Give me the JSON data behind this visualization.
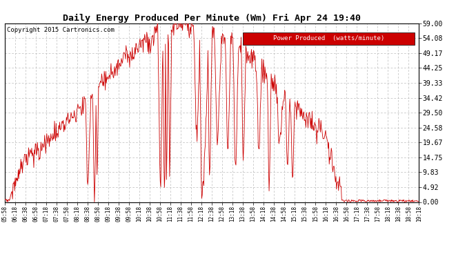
{
  "title": "Daily Energy Produced Per Minute (Wm) Fri Apr 24 19:40",
  "copyright": "Copyright 2015 Cartronics.com",
  "legend_label": "Power Produced  (watts/minute)",
  "legend_bg": "#cc0000",
  "legend_fg": "#ffffff",
  "line_color": "#cc0000",
  "bg_color": "#ffffff",
  "grid_color": "#bbbbbb",
  "ylim": [
    0,
    59.0
  ],
  "yticks": [
    0.0,
    4.92,
    9.83,
    14.75,
    19.67,
    24.58,
    29.5,
    34.42,
    39.33,
    44.25,
    49.17,
    54.08,
    59.0
  ],
  "ytick_labels": [
    "0.00",
    "4.92",
    "9.83",
    "14.75",
    "19.67",
    "24.58",
    "29.50",
    "34.42",
    "39.33",
    "44.25",
    "49.17",
    "54.08",
    "59.00"
  ],
  "xtick_labels": [
    "05:58",
    "06:18",
    "06:38",
    "06:58",
    "07:18",
    "07:38",
    "07:58",
    "08:18",
    "08:38",
    "08:58",
    "09:18",
    "09:38",
    "09:58",
    "10:18",
    "10:38",
    "10:58",
    "11:18",
    "11:38",
    "11:58",
    "12:18",
    "12:38",
    "12:58",
    "13:18",
    "13:38",
    "13:58",
    "14:18",
    "14:38",
    "14:58",
    "15:18",
    "15:38",
    "15:58",
    "16:18",
    "16:38",
    "16:58",
    "17:18",
    "17:38",
    "17:58",
    "18:18",
    "18:38",
    "18:58",
    "19:18"
  ],
  "figsize": [
    6.9,
    3.75
  ],
  "dpi": 100
}
